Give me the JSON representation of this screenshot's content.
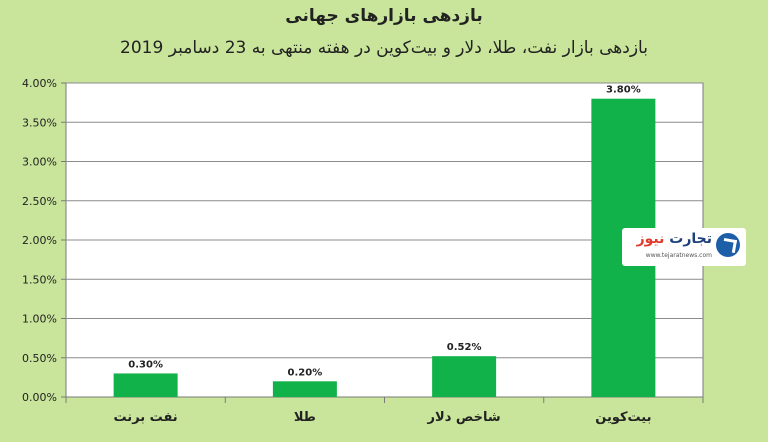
{
  "chart_data": {
    "type": "bar",
    "title": "بازدهی بازارهای جهانی",
    "subtitle": "بازدهی بازار نفت، طلا، دلار و بیت‌کوین در هفته منتهی به 23 دسامبر 2019",
    "categories": [
      "نفت برنت",
      "طلا",
      "شاخص دلار",
      "بیت‌کوین"
    ],
    "values": [
      0.3,
      0.2,
      0.52,
      3.8
    ],
    "value_labels": [
      "0.30%",
      "0.20%",
      "0.52%",
      "3.80%"
    ],
    "y_ticks": [
      "0.00%",
      "0.50%",
      "1.00%",
      "1.50%",
      "2.00%",
      "2.50%",
      "3.00%",
      "3.50%",
      "4.00%"
    ],
    "ylim": [
      0,
      4
    ],
    "unit": "%",
    "grid": true,
    "legend": "none",
    "colors": {
      "bar": "#12b24a",
      "background": "#c9e59b",
      "plot_background": "#ffffff",
      "grid": "#8c8c8c",
      "axis": "#7a7a7a"
    }
  },
  "watermark": {
    "name_part1": "تجارت",
    "name_part2": "نیوز",
    "url": "www.tejaratnews.com"
  }
}
